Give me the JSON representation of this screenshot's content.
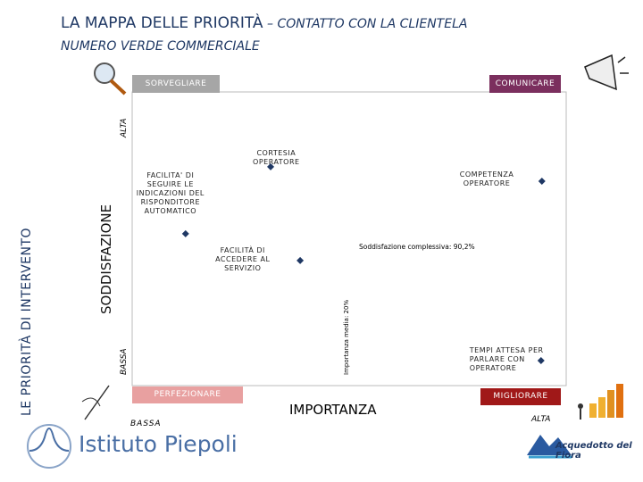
{
  "chart_data": {
    "type": "scatter",
    "title": "LA MAPPA DELLE PRIORITÀ",
    "title_suffix": " – CONTATTO CON LA CLIENTELA",
    "subtitle": "NUMERO VERDE COMMERCIALE",
    "side_label": "LE PRIORITÀ DI INTERVENTO",
    "y_label": "SODDISFAZIONE",
    "y_high": "ALTA",
    "y_low": "BASSA",
    "x_label": "IMPORTANZA",
    "x_high": "ALTA",
    "x_low": "BASSA",
    "quadrants": {
      "top_left": "SORVEGLIARE",
      "top_right": "COMUNICARE",
      "bottom_left": "PERFEZIONARE",
      "bottom_right": "MIGLIORARE"
    },
    "reference_labels": {
      "y": "Soddisfazione complessiva: 90,2%",
      "x": "Importanza media: 20%"
    },
    "xlim": [
      0,
      100
    ],
    "ylim": [
      0,
      100
    ],
    "color": "#1f3864",
    "points": [
      {
        "label": "CORTESIA\nOPERATORE",
        "x": 31.9,
        "y": 74.5
      },
      {
        "label": "COMPETENZA\nOPERATORE",
        "x": 94.4,
        "y": 69.6
      },
      {
        "label": "FACILITA' DI\nSEGUIRE LE\nINDICAZIONI DEL\nRISPONDITORE\nAUTOMATICO",
        "x": 12.3,
        "y": 51.7
      },
      {
        "label": "FACILITÀ DI\nACCEDERE AL\nSERVIZIO",
        "x": 38.7,
        "y": 42.6
      },
      {
        "label": "TEMPI ATTESA PER\nPARLARE CON\nOPERATORE",
        "x": 94.2,
        "y": 8.5
      }
    ]
  },
  "footer": {
    "left_logo": "Istituto Piepoli",
    "right_logo": "Acquedotto del Fiora"
  }
}
